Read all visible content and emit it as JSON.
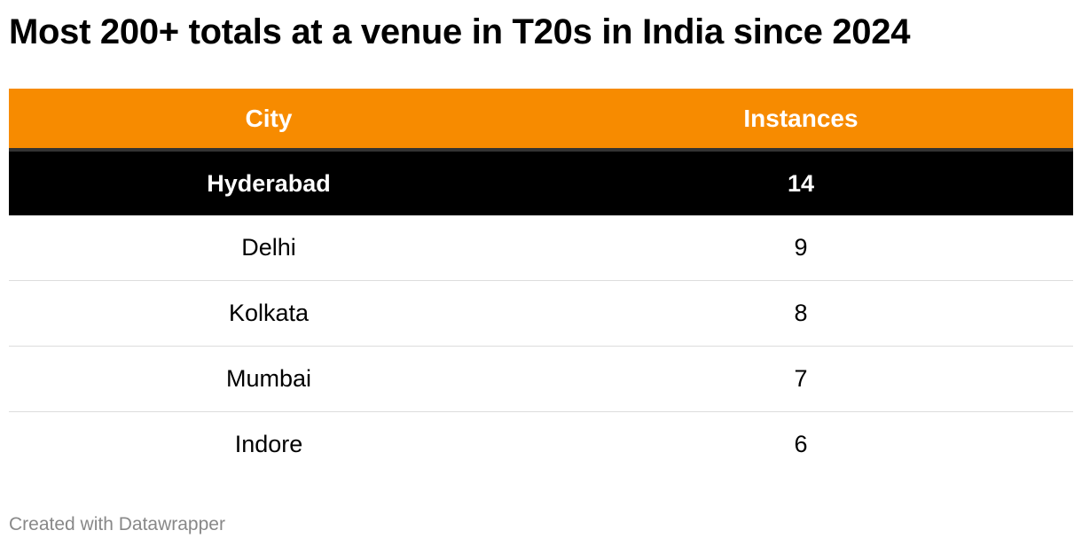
{
  "title": "Most 200+ totals at a venue in T20s in India since 2024",
  "footer": "Created with Datawrapper",
  "colors": {
    "header_bg": "#f78b00",
    "highlight_bg": "#000000"
  },
  "chart_data": {
    "type": "table",
    "title": "Most 200+ totals at a venue in T20s in India since 2024",
    "columns": [
      "City",
      "Instances"
    ],
    "rows": [
      {
        "city": "Hyderabad",
        "instances": "14",
        "highlight": true
      },
      {
        "city": "Delhi",
        "instances": "9",
        "highlight": false
      },
      {
        "city": "Kolkata",
        "instances": "8",
        "highlight": false
      },
      {
        "city": "Mumbai",
        "instances": "7",
        "highlight": false
      },
      {
        "city": "Indore",
        "instances": "6",
        "highlight": false
      }
    ]
  }
}
